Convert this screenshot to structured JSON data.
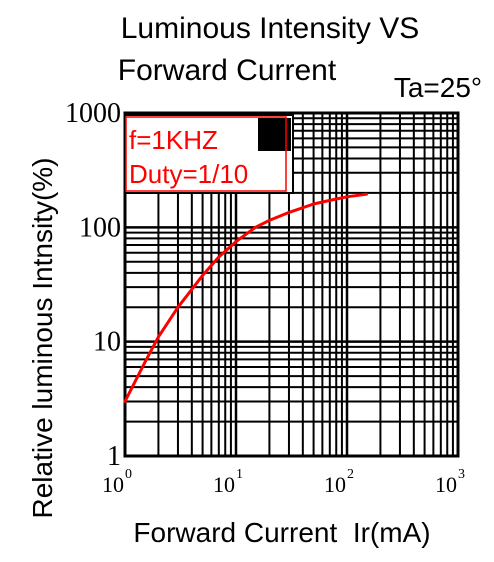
{
  "chart_data": {
    "type": "line",
    "title_line1": "Luminous Intensity VS",
    "title_line2": "Forward Current",
    "condition": "Ta=25°",
    "xlabel": "Forward Current  Ir(mA)",
    "ylabel": "Relative luminous Intnsity(%)",
    "x_scale": "log",
    "y_scale": "log",
    "xlim": [
      1,
      1000
    ],
    "ylim": [
      1,
      1000
    ],
    "grid": true,
    "x_ticks": [
      {
        "value": 1,
        "base": "10",
        "exp": "0"
      },
      {
        "value": 10,
        "base": "10",
        "exp": "1"
      },
      {
        "value": 100,
        "base": "10",
        "exp": "2"
      },
      {
        "value": 1000,
        "base": "10",
        "exp": "3"
      }
    ],
    "y_ticks": [
      {
        "value": 1,
        "label": "1"
      },
      {
        "value": 10,
        "label": "10"
      },
      {
        "value": 100,
        "label": "100"
      },
      {
        "value": 1000,
        "label": "1000"
      }
    ],
    "annotation": {
      "line1": "f=1KHZ",
      "line2": "Duty=1/10",
      "text_color": "#ff0000"
    },
    "series": [
      {
        "color": "#ff0000",
        "x": [
          1,
          1.5,
          2,
          3,
          5,
          7,
          10,
          15,
          20,
          30,
          50,
          70,
          100,
          150
        ],
        "y": [
          3,
          6.5,
          11,
          20,
          38,
          55,
          75,
          100,
          115,
          135,
          160,
          172,
          185,
          195
        ]
      }
    ]
  }
}
